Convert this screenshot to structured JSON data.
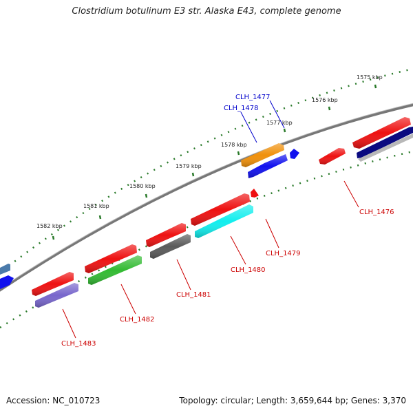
{
  "title": "Clostridium botulinum E3 str. Alaska E43, complete genome",
  "footer": {
    "accession": "Accession: NC_010723",
    "summary": "Topology: circular; Length: 3,659,644 bp; Genes: 3,370"
  },
  "ticks": [
    "1575 kbp",
    "1576 kbp",
    "1577 kbp",
    "1578 kbp",
    "1579 kbp",
    "1580 kbp",
    "1581 kbp",
    "1582 kbp"
  ],
  "genes": {
    "CLH_1476": "CLH_1476",
    "CLH_1477": "CLH_1477",
    "CLH_1478": "CLH_1478",
    "CLH_1479": "CLH_1479",
    "CLH_1480": "CLH_1480",
    "CLH_1481": "CLH_1481",
    "CLH_1482": "CLH_1482",
    "CLH_1483": "CLH_1483"
  },
  "colors": {
    "red": "#ee1111",
    "orange": "#f0900a",
    "blue": "#1111ee",
    "navy": "#0a0a80",
    "cyan": "#11eeee",
    "gray": "#5a5a5a",
    "green": "#33bb33",
    "purple": "#7766cc",
    "steel": "#4a7aaa",
    "backbone": "#777777",
    "dots": "#2a7a2a",
    "label_red": "#cc0000",
    "label_blue": "#0000cc"
  }
}
